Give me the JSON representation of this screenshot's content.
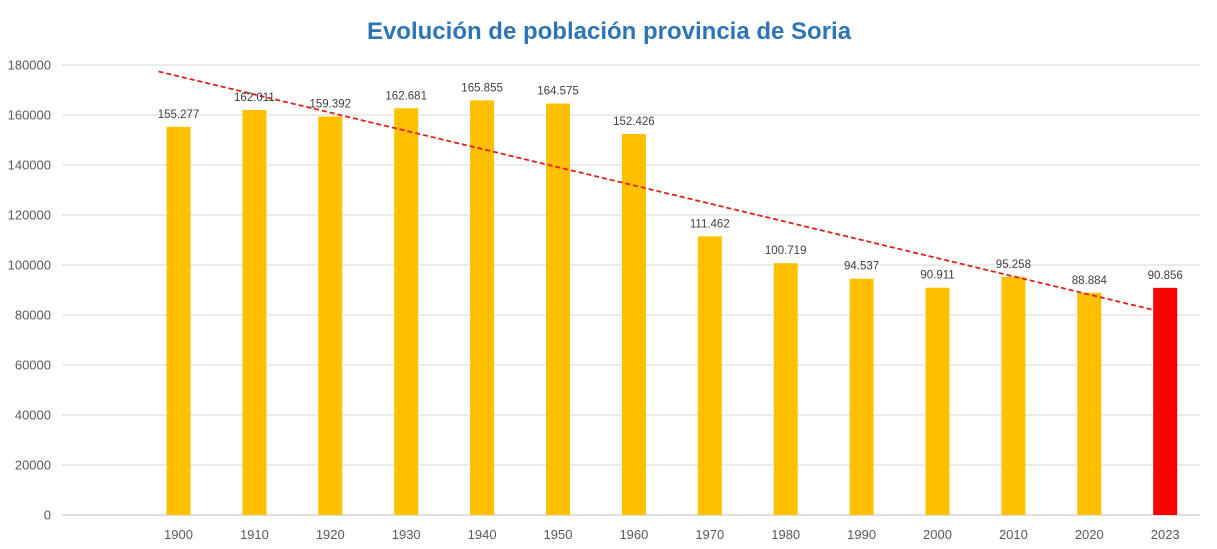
{
  "chart_data": {
    "type": "bar",
    "title": "Evolución de población provincia de Soria",
    "xlabel": "",
    "ylabel": "",
    "categories": [
      "1900",
      "1910",
      "1920",
      "1930",
      "1940",
      "1950",
      "1960",
      "1970",
      "1980",
      "1990",
      "2000",
      "2010",
      "2020",
      "2023"
    ],
    "series": [
      {
        "values": [
          155277,
          162011,
          159392,
          162681,
          165855,
          164575,
          152426,
          111462,
          100719,
          94537,
          90911,
          95258,
          88884,
          90856
        ],
        "data_labels": [
          "155.277",
          "162.011",
          "159.392",
          "162.681",
          "165.855",
          "164.575",
          "152.426",
          "111.462",
          "100.719",
          "94.537",
          "90.911",
          "95.258",
          "88.884",
          "90.856"
        ]
      }
    ],
    "ylim": [
      0,
      180000
    ],
    "yticks": [
      0,
      20000,
      40000,
      60000,
      80000,
      100000,
      120000,
      140000,
      160000,
      180000
    ],
    "grid": true,
    "legend": "none",
    "trendline": {
      "type": "linear",
      "style": "dashed",
      "color": "#e0201a"
    },
    "colors": {
      "bar": "#ffc000",
      "highlight_bar": "#ff0000",
      "highlight_category": "2023",
      "title": "#2e75b6",
      "grid": "#d9d9d9",
      "axis": "#bfbfbf"
    }
  }
}
